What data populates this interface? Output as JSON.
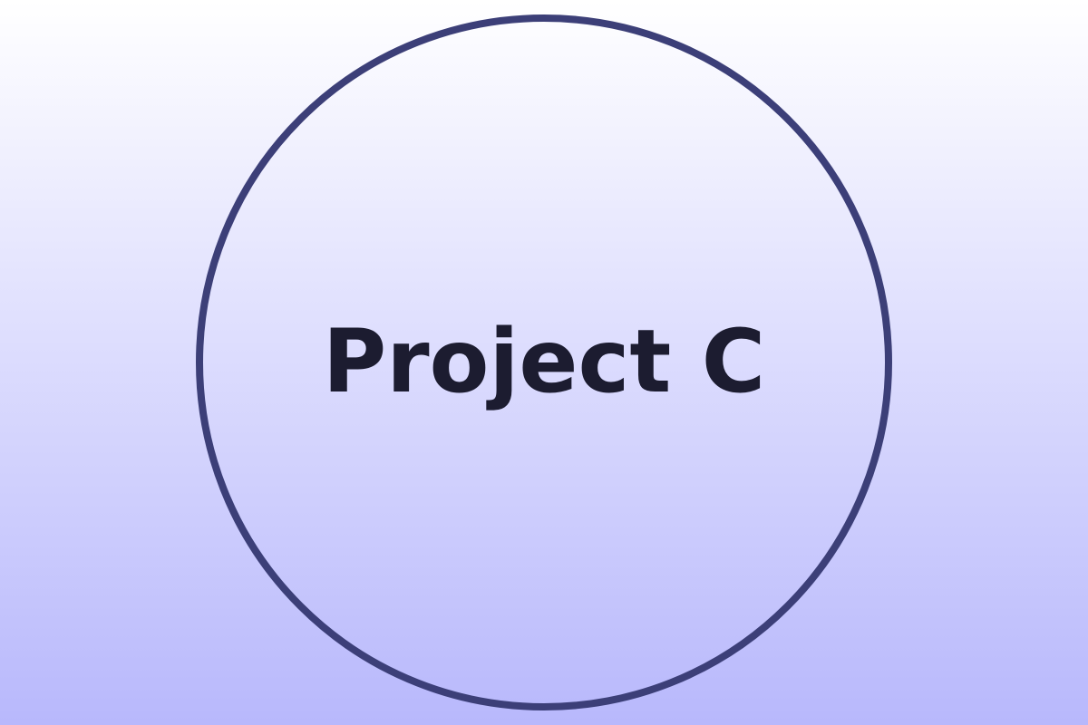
{
  "title": "Project C",
  "colors": {
    "background_top": "#ffffff",
    "background_bottom": "#b8b8fc",
    "ring": "#3c3f78",
    "text": "#1c1c30"
  }
}
